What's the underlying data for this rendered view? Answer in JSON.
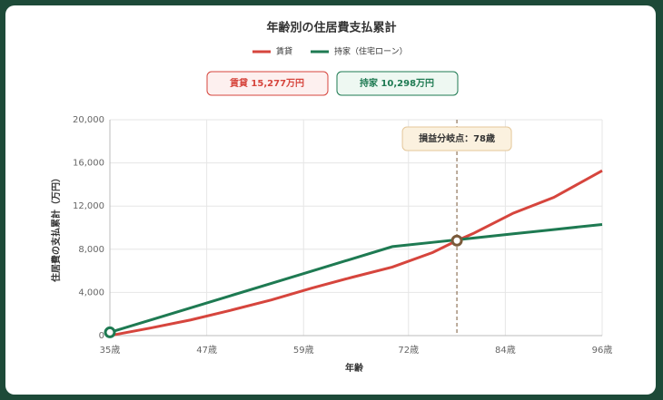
{
  "chart_data": {
    "type": "line",
    "title": "年齢別の住居費支払累計",
    "x": [
      35,
      40,
      45,
      50,
      55,
      60,
      65,
      70,
      75,
      78,
      80,
      85,
      90,
      96
    ],
    "series": [
      {
        "name": "賃貸",
        "color": "#d6453d",
        "values": [
          0,
          700,
          1450,
          2350,
          3300,
          4400,
          5400,
          6350,
          7700,
          8800,
          9450,
          11350,
          12800,
          15277
        ]
      },
      {
        "name": "持家（住宅ローン）",
        "color": "#1e7a52",
        "values": [
          300,
          1435,
          2570,
          3705,
          4840,
          5975,
          7110,
          8245,
          8640,
          8877,
          9035,
          9430,
          9825,
          10298
        ]
      }
    ],
    "badges": [
      "賃貸 15,277万円",
      "持家 10,298万円"
    ],
    "xlim": [
      35,
      96
    ],
    "xticks": [
      {
        "value": 35,
        "label": "35歳"
      },
      {
        "value": 47,
        "label": "47歳"
      },
      {
        "value": 59,
        "label": "59歳"
      },
      {
        "value": 72,
        "label": "72歳"
      },
      {
        "value": 84,
        "label": "84歳"
      },
      {
        "value": 96,
        "label": "96歳"
      }
    ],
    "ylim": [
      0,
      20000
    ],
    "yticks": [
      0,
      {
        "value": 4000,
        "label": "4,000"
      },
      {
        "value": 8000,
        "label": "8,000"
      },
      {
        "value": 12000,
        "label": "12,000"
      },
      {
        "value": 16000,
        "label": "16,000"
      },
      {
        "value": 20000,
        "label": "20,000"
      }
    ],
    "xlabel": "年齢",
    "ylabel": "住居費の支払累計（万円）",
    "breakeven": {
      "x": 78,
      "label": "損益分岐点：78歳"
    },
    "grid": true
  }
}
